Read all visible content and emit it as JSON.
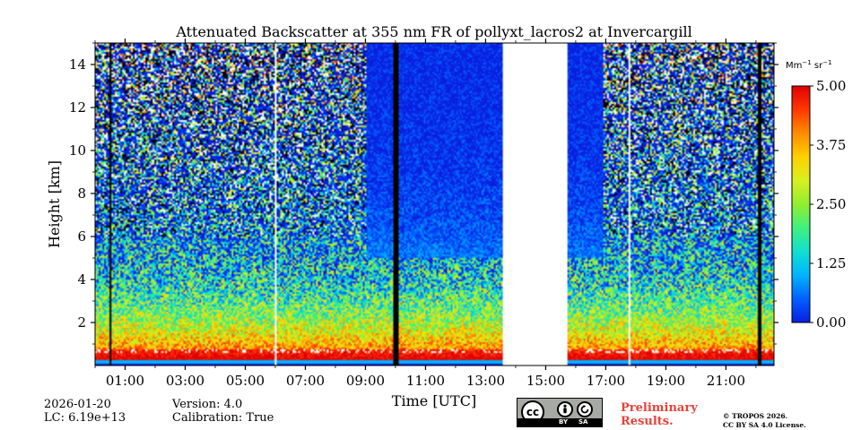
{
  "chart_data": {
    "type": "heatmap",
    "title": "Attenuated Backscatter at 355 nm FR of pollyxt_lacros2 at Invercargill",
    "xlabel": "Time [UTC]",
    "ylabel": "Height [km]",
    "xlim_hours": [
      0,
      22.6
    ],
    "ylim_km": [
      0,
      15
    ],
    "x_ticks": [
      {
        "hour": 1,
        "label": "01:00"
      },
      {
        "hour": 3,
        "label": "03:00"
      },
      {
        "hour": 5,
        "label": "05:00"
      },
      {
        "hour": 7,
        "label": "07:00"
      },
      {
        "hour": 9,
        "label": "09:00"
      },
      {
        "hour": 11,
        "label": "11:00"
      },
      {
        "hour": 13,
        "label": "13:00"
      },
      {
        "hour": 15,
        "label": "15:00"
      },
      {
        "hour": 17,
        "label": "17:00"
      },
      {
        "hour": 19,
        "label": "19:00"
      },
      {
        "hour": 21,
        "label": "21:00"
      }
    ],
    "y_ticks": [
      {
        "km": 2,
        "label": "2"
      },
      {
        "km": 4,
        "label": "4"
      },
      {
        "km": 6,
        "label": "6"
      },
      {
        "km": 8,
        "label": "8"
      },
      {
        "km": 10,
        "label": "10"
      },
      {
        "km": 12,
        "label": "12"
      },
      {
        "km": 14,
        "label": "14"
      }
    ],
    "colorbar": {
      "unit_prefix": "Mm",
      "unit_exp1": "−1",
      "unit_mid": " sr",
      "unit_exp2": "−1",
      "range": [
        0,
        5
      ],
      "ticks": [
        {
          "value": 0,
          "label": "0.00"
        },
        {
          "value": 1.25,
          "label": "1.25"
        },
        {
          "value": 2.5,
          "label": "2.50"
        },
        {
          "value": 3.75,
          "label": "3.75"
        },
        {
          "value": 5,
          "label": "5.00"
        }
      ],
      "colormap": [
        "#0a1ee0",
        "#0060ff",
        "#00b4ff",
        "#10e0d0",
        "#40f080",
        "#90ee30",
        "#d8f020",
        "#ffd000",
        "#ff8c00",
        "#ff3800",
        "#e00000"
      ]
    },
    "no_data_intervals_hours": [
      [
        5.95,
        6.05
      ],
      [
        13.6,
        15.75
      ]
    ],
    "instrument_off_intervals_hours": [
      [
        0.45,
        0.55
      ],
      [
        9.95,
        10.1
      ],
      [
        22.05,
        22.2
      ]
    ],
    "thin_gap_hours": [
      17.8
    ]
  },
  "footer": {
    "date": "2026-01-20",
    "lc": "LC: 6.19e+13",
    "version": "Version: 4.0",
    "calibration": "Calibration: True",
    "prelim_line1": "Preliminary",
    "prelim_line2": "Results.",
    "copyright_line1": "© TROPOS 2026.",
    "copyright_line2": "CC BY SA 4.0 License.",
    "cc_text": "cc",
    "by_text": "BY",
    "sa_text": "SA"
  }
}
